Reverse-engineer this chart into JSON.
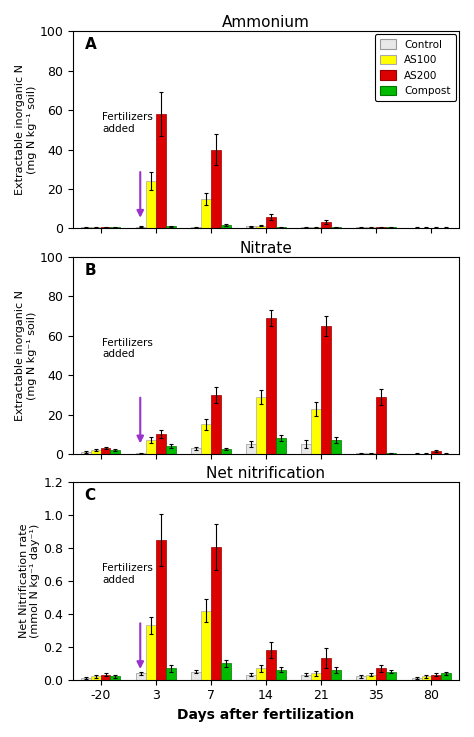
{
  "x_labels": [
    "-20",
    "3",
    "7",
    "14",
    "21",
    "35",
    "80"
  ],
  "x_positions": [
    0,
    1,
    2,
    3,
    4,
    5,
    6
  ],
  "bar_width": 0.18,
  "colors": {
    "Control": "#e8e8e8",
    "AS100": "#ffff00",
    "AS200": "#dd0000",
    "Compost": "#00bb00"
  },
  "edge_colors": {
    "Control": "#999999",
    "AS100": "#aaaaaa",
    "AS200": "#990000",
    "Compost": "#007700"
  },
  "legend_labels": [
    "Control",
    "AS100",
    "AS200",
    "Compost"
  ],
  "panel_A": {
    "title": "Ammonium",
    "label": "A",
    "ylabel": "Extractable inorganic N\n(mg N kg⁻¹ soil)",
    "ylim": [
      0,
      100
    ],
    "yticks": [
      0,
      20,
      40,
      60,
      80,
      100
    ],
    "control": [
      0.5,
      0.8,
      0.5,
      1.0,
      0.5,
      0.5,
      0.3
    ],
    "control_err": [
      0.3,
      0.3,
      0.3,
      0.4,
      0.3,
      0.3,
      0.2
    ],
    "AS100": [
      0.5,
      24.0,
      15.0,
      1.5,
      0.5,
      0.5,
      0.3
    ],
    "AS100_err": [
      0.3,
      4.5,
      3.0,
      0.5,
      0.3,
      0.3,
      0.2
    ],
    "AS200": [
      0.5,
      58.0,
      40.0,
      6.0,
      3.5,
      0.5,
      0.3
    ],
    "AS200_err": [
      0.3,
      11.0,
      8.0,
      1.5,
      1.0,
      0.3,
      0.2
    ],
    "Compost": [
      0.5,
      1.0,
      2.0,
      0.5,
      0.5,
      0.5,
      0.3
    ],
    "Compost_err": [
      0.3,
      0.5,
      0.5,
      0.3,
      0.3,
      0.3,
      0.2
    ]
  },
  "panel_B": {
    "title": "Nitrate",
    "label": "B",
    "ylabel": "Extractable inorganic N\n(mg N kg⁻¹ soil)",
    "ylim": [
      0,
      100
    ],
    "yticks": [
      0,
      20,
      40,
      60,
      80,
      100
    ],
    "control": [
      1.0,
      0.5,
      3.0,
      5.0,
      5.0,
      0.5,
      0.3
    ],
    "control_err": [
      0.5,
      0.3,
      0.8,
      1.5,
      2.0,
      0.3,
      0.2
    ],
    "AS100": [
      2.0,
      7.0,
      15.0,
      29.0,
      23.0,
      0.5,
      0.3
    ],
    "AS100_err": [
      0.5,
      1.5,
      3.0,
      3.5,
      3.5,
      0.3,
      0.2
    ],
    "AS200": [
      3.0,
      10.0,
      30.0,
      69.0,
      65.0,
      29.0,
      1.5
    ],
    "AS200_err": [
      0.5,
      2.0,
      4.0,
      4.0,
      5.0,
      4.0,
      0.5
    ],
    "Compost": [
      2.0,
      4.0,
      2.5,
      8.0,
      7.0,
      0.5,
      0.3
    ],
    "Compost_err": [
      0.5,
      1.0,
      0.5,
      1.5,
      1.5,
      0.3,
      0.2
    ]
  },
  "panel_C": {
    "title": "Net nitrification",
    "label": "C",
    "ylabel": "Net Nitrification rate\n(mmol N kg⁻¹ day⁻¹)",
    "ylim": [
      0,
      1.2
    ],
    "yticks": [
      0.0,
      0.2,
      0.4,
      0.6,
      0.8,
      1.0,
      1.2
    ],
    "control": [
      0.01,
      0.04,
      0.05,
      0.03,
      0.03,
      0.02,
      0.01
    ],
    "control_err": [
      0.005,
      0.01,
      0.01,
      0.01,
      0.01,
      0.01,
      0.005
    ],
    "AS100": [
      0.02,
      0.33,
      0.42,
      0.07,
      0.04,
      0.03,
      0.02
    ],
    "AS100_err": [
      0.01,
      0.05,
      0.07,
      0.02,
      0.015,
      0.01,
      0.01
    ],
    "AS200": [
      0.03,
      0.85,
      0.81,
      0.18,
      0.13,
      0.07,
      0.03
    ],
    "AS200_err": [
      0.01,
      0.16,
      0.14,
      0.05,
      0.06,
      0.02,
      0.01
    ],
    "Compost": [
      0.02,
      0.07,
      0.1,
      0.06,
      0.06,
      0.05,
      0.04
    ],
    "Compost_err": [
      0.01,
      0.02,
      0.02,
      0.015,
      0.02,
      0.01,
      0.01
    ]
  },
  "background_color": "#ffffff",
  "arrow_color": "#9933cc"
}
